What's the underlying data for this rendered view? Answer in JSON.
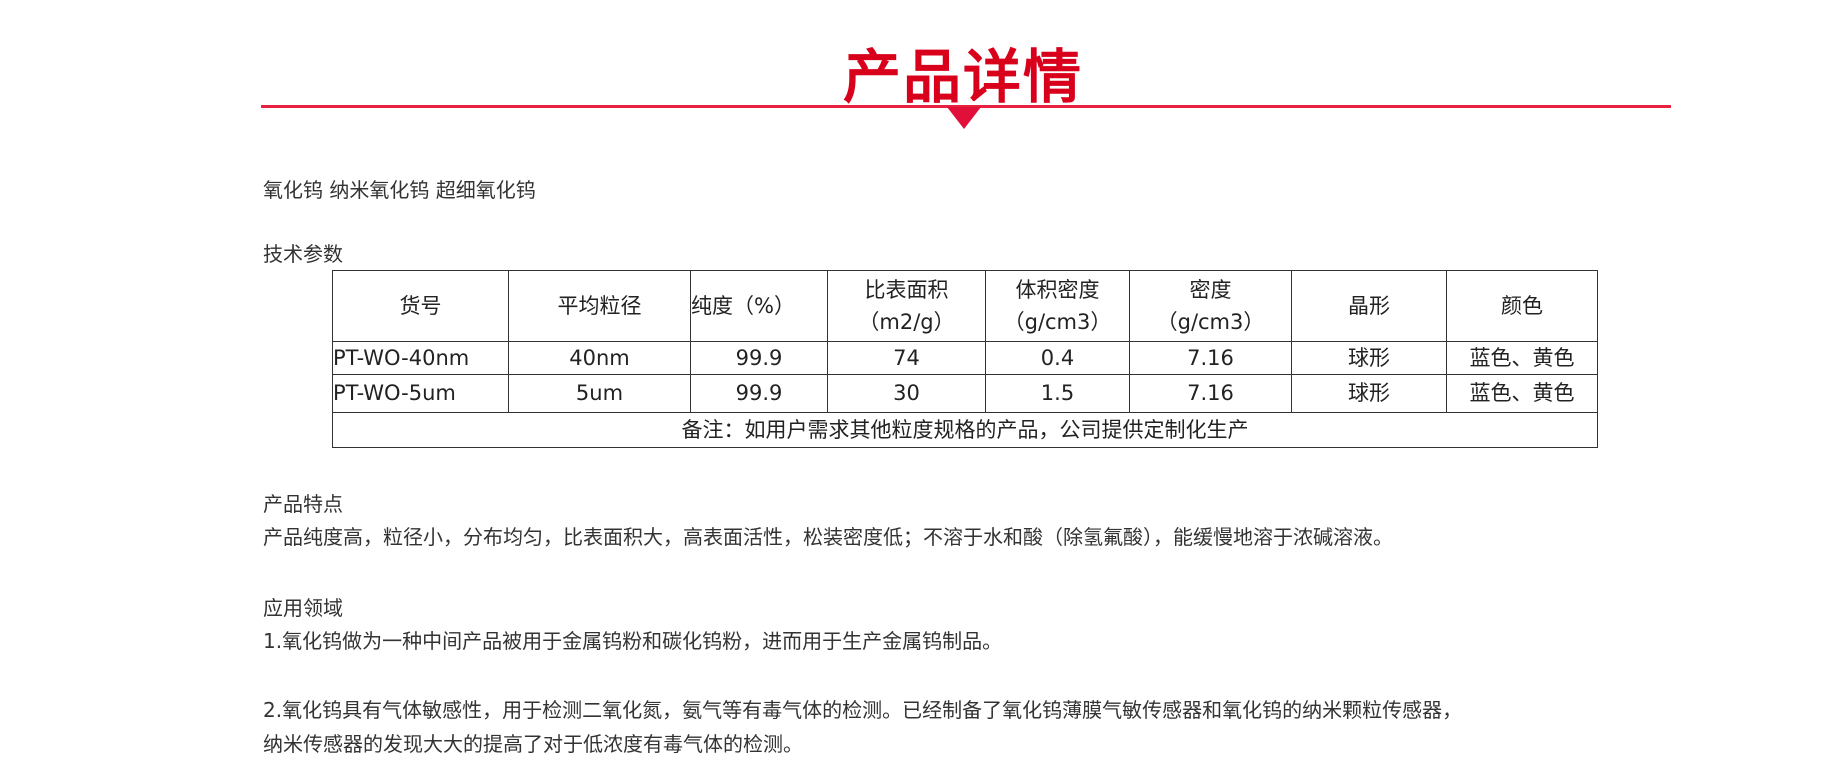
{
  "header": {
    "title": "产品详情"
  },
  "keywords": "氧化钨  纳米氧化钨  超细氧化钨",
  "params_heading": "技术参数",
  "table": {
    "headers": [
      [
        "货号"
      ],
      [
        "平均粒径"
      ],
      [
        "纯度（%）"
      ],
      [
        "比表面积",
        "（m2/g）"
      ],
      [
        "体积密度",
        "（g/cm3）"
      ],
      [
        "密度",
        "（g/cm3）"
      ],
      [
        "晶形"
      ],
      [
        "颜色"
      ]
    ],
    "rows": [
      [
        "PT-WO-40nm",
        "40nm",
        "99.9",
        "74",
        "0.4",
        "7.16",
        "球形",
        "蓝色、黄色"
      ],
      [
        "PT-WO-5um",
        "5um",
        "99.9",
        "30",
        "1.5",
        "7.16",
        "球形",
        "蓝色、黄色"
      ]
    ],
    "note": "备注：如用户需求其他粒度规格的产品，公司提供定制化生产"
  },
  "features": {
    "heading": "产品特点",
    "text": "产品纯度高，粒径小，分布均匀，比表面积大，高表面活性，松装密度低；不溶于水和酸（除氢氟酸），能缓慢地溶于浓碱溶液。"
  },
  "applications": {
    "heading": "应用领域",
    "items": [
      "1.氧化钨做为一种中间产品被用于金属钨粉和碳化钨粉，进而用于生产金属钨制品。",
      "2.氧化钨具有气体敏感性，用于检测二氧化氮，氨气等有毒气体的检测。已经制备了氧化钨薄膜气敏传感器和氧化钨的纳米颗粒传感器，",
      "纳米传感器的发现大大的提高了对于低浓度有毒气体的检测。"
    ]
  },
  "colors": {
    "accent": "#d8001a"
  }
}
